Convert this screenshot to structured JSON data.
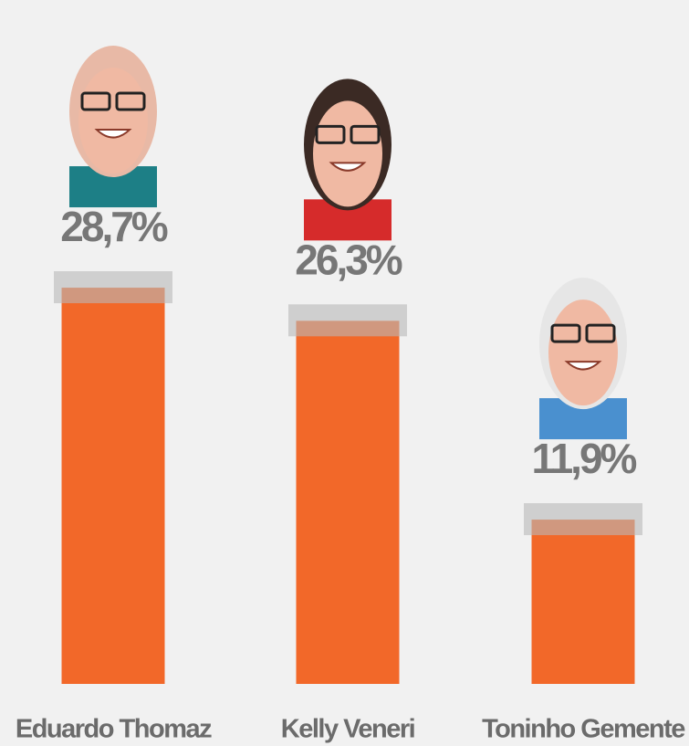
{
  "chart_data": {
    "type": "bar",
    "categories": [
      "Eduardo Thomaz",
      "Kelly Veneri",
      "Toninho Gemente"
    ],
    "values": [
      28.7,
      26.3,
      11.9
    ],
    "value_labels": [
      "28,7%",
      "26,3%",
      "11,9%"
    ],
    "color": "#f26829"
  }
}
